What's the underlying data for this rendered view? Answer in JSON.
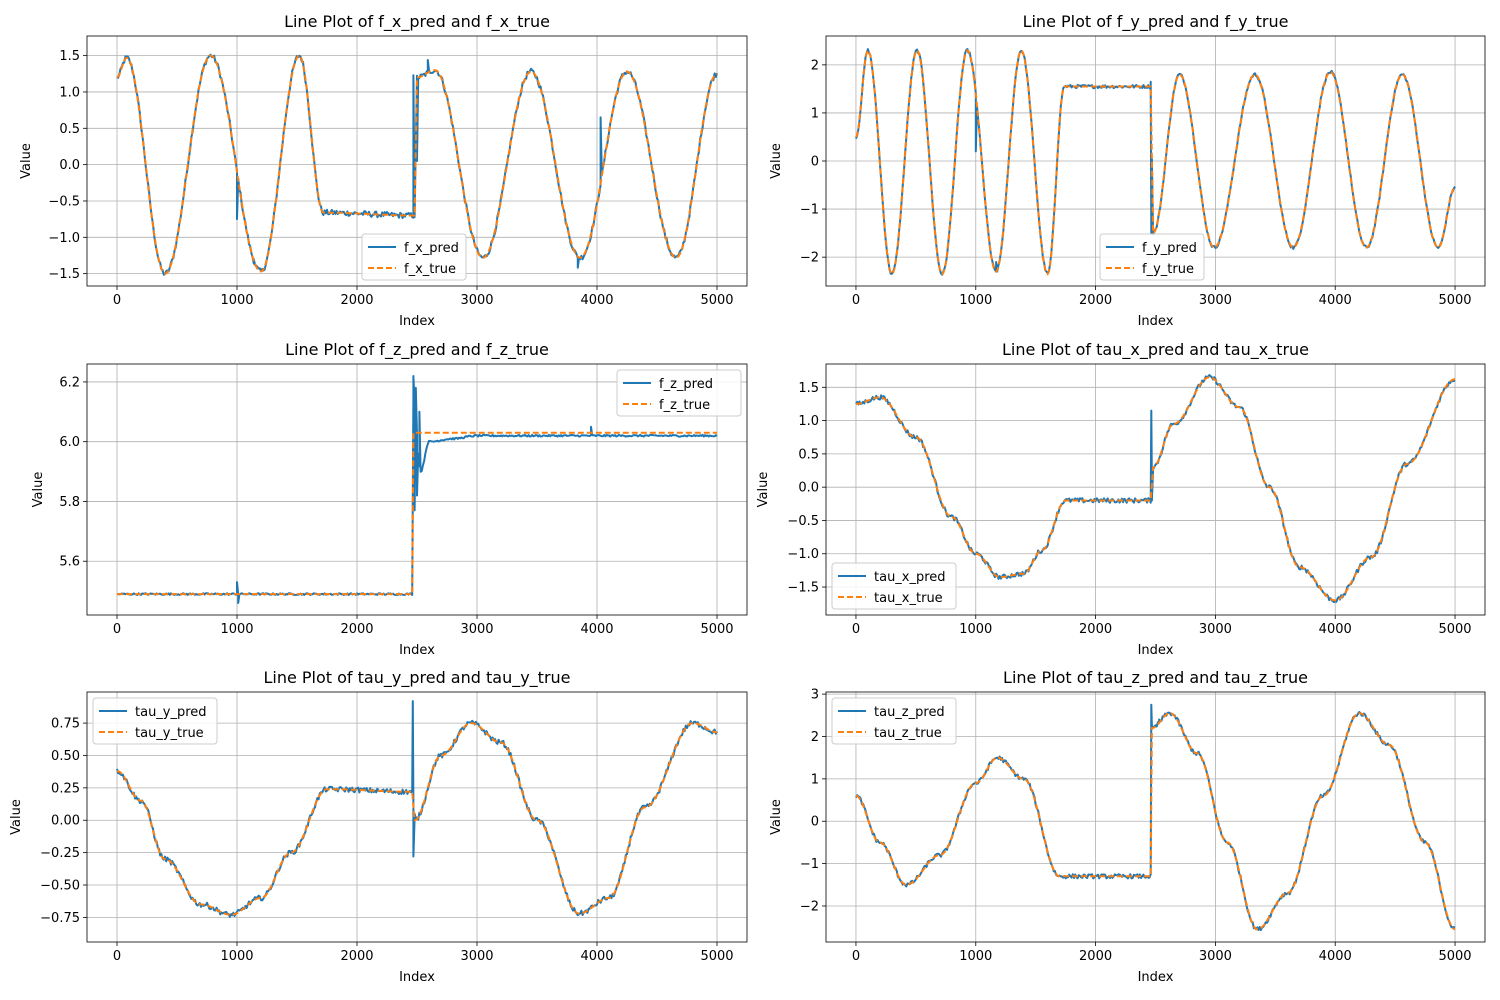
{
  "colors": {
    "pred": "#1f77b4",
    "true": "#ff7f0e",
    "grid": "#b0b0b0",
    "axis": "#000000"
  },
  "chart_data": [
    {
      "type": "line",
      "title": "Line Plot of f_x_pred and f_x_true",
      "xlabel": "Index",
      "ylabel": "Value",
      "xlim": [
        -250,
        5250
      ],
      "ylim": [
        -1.67,
        1.77
      ],
      "xticks": [
        0,
        1000,
        2000,
        3000,
        4000,
        5000
      ],
      "yticks": [
        -1.5,
        -1.0,
        -0.5,
        0.0,
        0.5,
        1.0,
        1.5
      ],
      "ytick_labels": [
        "−1.5",
        "−1.0",
        "−0.5",
        "0.0",
        "0.5",
        "1.0",
        "1.5"
      ],
      "grid": true,
      "legend_position": "lower-center",
      "series": [
        {
          "name": "f_x_pred",
          "style": "solid",
          "noise": 0.04,
          "x": [
            0,
            80,
            400,
            780,
            1200,
            1520,
            1720,
            2480,
            2500,
            2650,
            3050,
            3450,
            3860,
            4250,
            4660,
            5000
          ],
          "y": [
            1.2,
            1.47,
            -1.5,
            1.5,
            -1.47,
            1.5,
            -0.66,
            -0.7,
            1.2,
            1.3,
            -1.28,
            1.28,
            -1.28,
            1.28,
            -1.28,
            1.25
          ],
          "spikes": [
            [
              2470,
              1.23
            ],
            [
              2500,
              0.05
            ],
            [
              1000,
              -0.75
            ],
            [
              1140,
              -1.3
            ],
            [
              4030,
              0.65
            ],
            [
              3840,
              -1.42
            ],
            [
              2590,
              1.44
            ]
          ]
        },
        {
          "name": "f_x_true",
          "style": "dashed",
          "x": [
            0,
            80,
            400,
            780,
            1200,
            1520,
            1720,
            2480,
            2500,
            2650,
            3050,
            3450,
            3860,
            4250,
            4660,
            5000
          ],
          "y": [
            1.2,
            1.47,
            -1.5,
            1.5,
            -1.47,
            1.5,
            -0.66,
            -0.7,
            1.2,
            1.3,
            -1.28,
            1.28,
            -1.28,
            1.28,
            -1.28,
            1.25
          ]
        }
      ]
    },
    {
      "type": "line",
      "title": "Line Plot of f_y_pred and f_y_true",
      "xlabel": "Index",
      "ylabel": "Value",
      "xlim": [
        -250,
        5250
      ],
      "ylim": [
        -2.6,
        2.6
      ],
      "xticks": [
        0,
        1000,
        2000,
        3000,
        4000,
        5000
      ],
      "yticks": [
        -2,
        -1,
        0,
        1,
        2
      ],
      "ytick_labels": [
        "−2",
        "−1",
        "0",
        "1",
        "2"
      ],
      "grid": true,
      "legend_position": "lower-center",
      "series": [
        {
          "name": "f_y_pred",
          "style": "solid",
          "noise": 0.035,
          "x": [
            0,
            100,
            300,
            510,
            720,
            930,
            1170,
            1380,
            1600,
            1740,
            2460,
            2480,
            2700,
            2990,
            3330,
            3650,
            3960,
            4260,
            4560,
            4860,
            5000
          ],
          "y": [
            0.5,
            2.3,
            -2.35,
            2.3,
            -2.35,
            2.3,
            -2.3,
            2.3,
            -2.35,
            1.55,
            1.55,
            -1.5,
            1.8,
            -1.8,
            1.8,
            -1.8,
            1.85,
            -1.8,
            1.8,
            -1.8,
            -0.55
          ],
          "spikes": [
            [
              2460,
              1.65
            ],
            [
              2465,
              -1.5
            ],
            [
              1000,
              0.2
            ],
            [
              1170,
              -2.1
            ]
          ]
        },
        {
          "name": "f_y_true",
          "style": "dashed",
          "x": [
            0,
            100,
            300,
            510,
            720,
            930,
            1170,
            1380,
            1600,
            1740,
            2460,
            2480,
            2700,
            2990,
            3330,
            3650,
            3960,
            4260,
            4560,
            4860,
            5000
          ],
          "y": [
            0.5,
            2.3,
            -2.35,
            2.3,
            -2.35,
            2.3,
            -2.3,
            2.3,
            -2.35,
            1.55,
            1.55,
            -1.5,
            1.8,
            -1.8,
            1.8,
            -1.8,
            1.85,
            -1.8,
            1.8,
            -1.8,
            -0.55
          ]
        }
      ]
    },
    {
      "type": "line",
      "title": "Line Plot of f_z_pred and f_z_true",
      "xlabel": "Index",
      "ylabel": "Value",
      "xlim": [
        -250,
        5250
      ],
      "ylim": [
        5.42,
        6.26
      ],
      "xticks": [
        0,
        1000,
        2000,
        3000,
        4000,
        5000
      ],
      "yticks": [
        5.6,
        5.8,
        6.0,
        6.2
      ],
      "ytick_labels": [
        "5.6",
        "5.8",
        "6.0",
        "6.2"
      ],
      "grid": true,
      "legend_position": "upper-right",
      "series": [
        {
          "name": "f_z_pred",
          "style": "solid",
          "noise": 0.003,
          "x": [
            0,
            2460,
            2470,
            2530,
            2600,
            2800,
            3000,
            4000,
            5000
          ],
          "y": [
            5.49,
            5.49,
            6.15,
            5.9,
            6.0,
            6.01,
            6.02,
            6.02,
            6.02
          ],
          "spikes": [
            [
              2470,
              6.22
            ],
            [
              2480,
              5.77
            ],
            [
              2490,
              6.18
            ],
            [
              2500,
              5.82
            ],
            [
              2520,
              6.1
            ],
            [
              1000,
              5.53
            ],
            [
              1010,
              5.46
            ],
            [
              3950,
              6.05
            ]
          ]
        },
        {
          "name": "f_z_true",
          "style": "dashed",
          "x": [
            0,
            2460,
            2470,
            5000
          ],
          "y": [
            5.49,
            5.49,
            6.03,
            6.03
          ]
        }
      ]
    },
    {
      "type": "line",
      "title": "Line Plot of tau_x_pred and tau_x_true",
      "xlabel": "Index",
      "ylabel": "Value",
      "xlim": [
        -250,
        5250
      ],
      "ylim": [
        -1.92,
        1.85
      ],
      "xticks": [
        0,
        1000,
        2000,
        3000,
        4000,
        5000
      ],
      "yticks": [
        -1.5,
        -1.0,
        -0.5,
        0.0,
        0.5,
        1.0,
        1.5
      ],
      "ytick_labels": [
        "−1.5",
        "−1.0",
        "−0.5",
        "0.0",
        "0.5",
        "1.0",
        "1.5"
      ],
      "grid": true,
      "legend_position": "lower-left",
      "series": [
        {
          "name": "tau_x_pred",
          "style": "solid",
          "noise": 0.035,
          "x": [
            0,
            200,
            500,
            800,
            1000,
            1200,
            1400,
            1550,
            1750,
            2460,
            2480,
            2650,
            2950,
            3200,
            3450,
            3700,
            4000,
            4300,
            4600,
            5000
          ],
          "y": [
            1.25,
            1.35,
            0.75,
            -0.45,
            -1.0,
            -1.35,
            -1.3,
            -0.95,
            -0.2,
            -0.2,
            0.3,
            0.95,
            1.65,
            1.2,
            0.0,
            -1.2,
            -1.7,
            -1.05,
            0.35,
            1.62
          ],
          "spikes": [
            [
              2465,
              1.15
            ],
            [
              2470,
              -0.2
            ]
          ]
        },
        {
          "name": "tau_x_true",
          "style": "dashed",
          "x": [
            0,
            200,
            500,
            800,
            1000,
            1200,
            1400,
            1550,
            1750,
            2460,
            2480,
            2650,
            2950,
            3200,
            3450,
            3700,
            4000,
            4300,
            4600,
            5000
          ],
          "y": [
            1.25,
            1.35,
            0.75,
            -0.45,
            -1.0,
            -1.35,
            -1.3,
            -0.95,
            -0.2,
            -0.2,
            0.3,
            0.95,
            1.65,
            1.2,
            0.0,
            -1.2,
            -1.7,
            -1.05,
            0.35,
            1.62
          ]
        }
      ]
    },
    {
      "type": "line",
      "title": "Line Plot of tau_y_pred and tau_y_true",
      "xlabel": "Index",
      "ylabel": "Value",
      "xlim": [
        -250,
        5250
      ],
      "ylim": [
        -0.94,
        0.99
      ],
      "xticks": [
        0,
        1000,
        2000,
        3000,
        4000,
        5000
      ],
      "yticks": [
        -0.75,
        -0.5,
        -0.25,
        0.0,
        0.25,
        0.5,
        0.75
      ],
      "ytick_labels": [
        "−0.75",
        "−0.50",
        "−0.25",
        "0.00",
        "0.25",
        "0.50",
        "0.75"
      ],
      "grid": true,
      "legend_position": "upper-left",
      "series": [
        {
          "name": "tau_y_pred",
          "style": "solid",
          "noise": 0.02,
          "x": [
            0,
            200,
            400,
            700,
            950,
            1200,
            1450,
            1750,
            2460,
            2480,
            2700,
            2950,
            3200,
            3500,
            3850,
            4100,
            4400,
            4800,
            5000
          ],
          "y": [
            0.38,
            0.15,
            -0.3,
            -0.65,
            -0.73,
            -0.6,
            -0.25,
            0.24,
            0.22,
            0.0,
            0.5,
            0.75,
            0.6,
            0.0,
            -0.72,
            -0.6,
            0.1,
            0.75,
            0.68
          ],
          "spikes": [
            [
              2465,
              0.92
            ],
            [
              2470,
              -0.28
            ],
            [
              2480,
              0.05
            ]
          ]
        },
        {
          "name": "tau_y_true",
          "style": "dashed",
          "x": [
            0,
            200,
            400,
            700,
            950,
            1200,
            1450,
            1750,
            2460,
            2480,
            2700,
            2950,
            3200,
            3500,
            3850,
            4100,
            4400,
            4800,
            5000
          ],
          "y": [
            0.38,
            0.15,
            -0.3,
            -0.65,
            -0.73,
            -0.6,
            -0.25,
            0.24,
            0.22,
            0.0,
            0.5,
            0.75,
            0.6,
            0.0,
            -0.72,
            -0.6,
            0.1,
            0.75,
            0.68
          ]
        }
      ]
    },
    {
      "type": "line",
      "title": "Line Plot of tau_z_pred and tau_z_true",
      "xlabel": "Index",
      "ylabel": "Value",
      "xlim": [
        -250,
        5250
      ],
      "ylim": [
        -2.85,
        3.05
      ],
      "xticks": [
        0,
        1000,
        2000,
        3000,
        4000,
        5000
      ],
      "yticks": [
        -2,
        -1,
        0,
        1,
        2,
        3
      ],
      "ytick_labels": [
        "−2",
        "−1",
        "0",
        "1",
        "2",
        "3"
      ],
      "grid": true,
      "legend_position": "upper-left",
      "series": [
        {
          "name": "tau_z_pred",
          "style": "solid",
          "noise": 0.05,
          "x": [
            0,
            200,
            420,
            700,
            1000,
            1180,
            1400,
            1700,
            2460,
            2470,
            2620,
            2850,
            3100,
            3350,
            3600,
            3900,
            4200,
            4450,
            4750,
            5000
          ],
          "y": [
            0.6,
            -0.5,
            -1.5,
            -0.8,
            0.9,
            1.5,
            1.0,
            -1.3,
            -1.3,
            2.2,
            2.55,
            1.6,
            -0.5,
            -2.55,
            -1.7,
            0.6,
            2.55,
            1.8,
            -0.5,
            -2.55
          ],
          "spikes": [
            [
              2465,
              2.75
            ],
            [
              2530,
              2.4
            ]
          ]
        },
        {
          "name": "tau_z_true",
          "style": "dashed",
          "x": [
            0,
            200,
            420,
            700,
            1000,
            1180,
            1400,
            1700,
            2460,
            2470,
            2620,
            2850,
            3100,
            3350,
            3600,
            3900,
            4200,
            4450,
            4750,
            5000
          ],
          "y": [
            0.6,
            -0.5,
            -1.5,
            -0.8,
            0.9,
            1.5,
            1.0,
            -1.3,
            -1.3,
            2.2,
            2.55,
            1.6,
            -0.5,
            -2.55,
            -1.7,
            0.6,
            2.55,
            1.8,
            -0.5,
            -2.55
          ]
        }
      ]
    }
  ]
}
